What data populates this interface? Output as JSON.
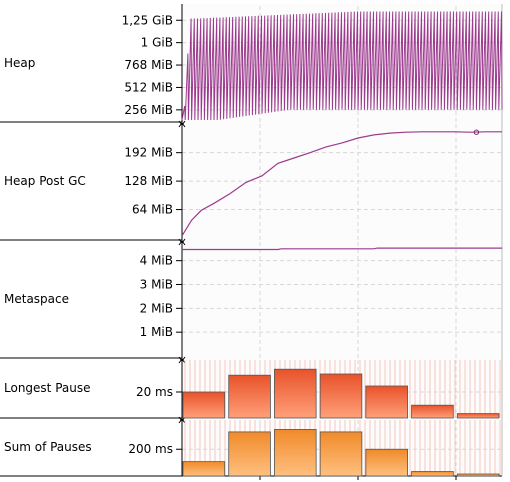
{
  "panel_labels": [
    "Heap",
    "Heap Post GC",
    "Metaspace",
    "Longest Pause",
    "Sum of Pauses"
  ],
  "colors": {
    "line": "#9c3a8e",
    "bar_top": "#e8532a",
    "bar_bottom": "#ffa07a",
    "bar2_top": "#f08a2a",
    "bar2_bottom": "#ffc080",
    "bar_stroke": "#555555",
    "stripe": "#f6c6c0",
    "grid": "#d8d8d8"
  },
  "chart_data": [
    {
      "type": "line",
      "panel": "Heap",
      "unit": "MiB",
      "yticks": [
        {
          "value": 1280,
          "label": "1,25 GiB"
        },
        {
          "value": 1024,
          "label": "1 GiB"
        },
        {
          "value": 768,
          "label": "768 MiB"
        },
        {
          "value": 512,
          "label": "512 MiB"
        },
        {
          "value": 256,
          "label": "256 MiB"
        }
      ],
      "ylim": [
        140,
        1420
      ],
      "grid": true,
      "sawtooth": {
        "cycles": 100,
        "low_start": 80,
        "low_end": 256,
        "peak_early": [
          300,
          900,
          1300
        ],
        "peak_late": 1380
      }
    },
    {
      "type": "line",
      "panel": "Heap Post GC",
      "unit": "MiB",
      "yticks": [
        {
          "value": 192,
          "label": "192 MiB"
        },
        {
          "value": 128,
          "label": "128 MiB"
        },
        {
          "value": 64,
          "label": "64 MiB"
        }
      ],
      "ylim": [
        0,
        252
      ],
      "grid": true,
      "x": [
        0,
        3,
        6,
        10,
        15,
        20,
        25,
        30,
        35,
        40,
        45,
        50,
        55,
        60,
        65,
        70,
        75,
        80,
        85,
        90,
        95,
        100
      ],
      "values": [
        5,
        40,
        62,
        78,
        100,
        125,
        140,
        168,
        180,
        192,
        205,
        214,
        225,
        232,
        236,
        238,
        239,
        239,
        239,
        238,
        239,
        239
      ]
    },
    {
      "type": "line",
      "panel": "Metaspace",
      "unit": "MiB",
      "yticks": [
        {
          "value": 4,
          "label": "4 MiB"
        },
        {
          "value": 3,
          "label": "3 MiB"
        },
        {
          "value": 2,
          "label": "2 MiB"
        },
        {
          "value": 1,
          "label": "1 MiB"
        }
      ],
      "ylim": [
        0,
        4.7
      ],
      "grid": true,
      "x": [
        0,
        30,
        31,
        60,
        61,
        100
      ],
      "values": [
        4.47,
        4.47,
        4.5,
        4.5,
        4.53,
        4.53
      ]
    },
    {
      "type": "bar",
      "panel": "Longest Pause",
      "unit": "ms",
      "yticks": [
        {
          "value": 20,
          "label": "20 ms"
        }
      ],
      "ylim": [
        0,
        45
      ],
      "values": [
        20,
        34,
        39,
        35,
        25,
        9,
        2
      ]
    },
    {
      "type": "bar",
      "panel": "Sum of Pauses",
      "unit": "ms",
      "yticks": [
        {
          "value": 200,
          "label": "200 ms"
        }
      ],
      "ylim": [
        0,
        420
      ],
      "values": [
        100,
        340,
        360,
        340,
        200,
        20,
        0
      ]
    }
  ]
}
